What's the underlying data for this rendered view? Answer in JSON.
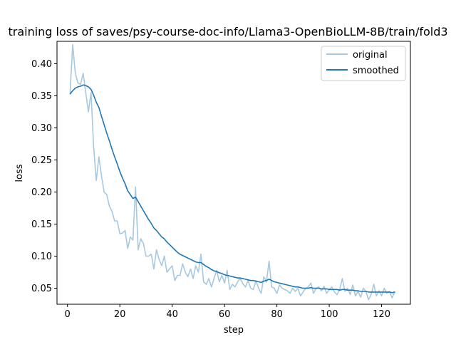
{
  "chart_data": {
    "type": "line",
    "title": "training loss of saves/psy-course-doc-info/Llama3-OpenBioLLM-8B/train/fold3",
    "xlabel": "step",
    "ylabel": "loss",
    "xlim": [
      -4,
      131
    ],
    "ylim": [
      0.025,
      0.435
    ],
    "xticks": [
      0,
      20,
      40,
      60,
      80,
      100,
      120
    ],
    "yticks": [
      0.05,
      0.1,
      0.15,
      0.2,
      0.25,
      0.3,
      0.35,
      0.4
    ],
    "legend_position": "top-right",
    "series": [
      {
        "name": "original",
        "color": "#a6c8e0",
        "x": [
          1,
          2,
          3,
          4,
          5,
          6,
          7,
          8,
          9,
          10,
          11,
          12,
          13,
          14,
          15,
          16,
          17,
          18,
          19,
          20,
          21,
          22,
          23,
          24,
          25,
          26,
          27,
          28,
          29,
          30,
          31,
          32,
          33,
          34,
          35,
          36,
          37,
          38,
          39,
          40,
          41,
          42,
          43,
          44,
          45,
          46,
          47,
          48,
          49,
          50,
          51,
          52,
          53,
          54,
          55,
          56,
          57,
          58,
          59,
          60,
          61,
          62,
          63,
          64,
          65,
          66,
          67,
          68,
          69,
          70,
          71,
          72,
          73,
          74,
          75,
          76,
          77,
          78,
          79,
          80,
          81,
          82,
          83,
          84,
          85,
          86,
          87,
          88,
          89,
          90,
          91,
          92,
          93,
          94,
          95,
          96,
          97,
          98,
          99,
          100,
          101,
          102,
          103,
          104,
          105,
          106,
          107,
          108,
          109,
          110,
          111,
          112,
          113,
          114,
          115,
          116,
          117,
          118,
          119,
          120,
          121,
          122,
          123,
          124,
          125
        ],
        "y": [
          0.355,
          0.43,
          0.385,
          0.37,
          0.368,
          0.385,
          0.355,
          0.325,
          0.355,
          0.27,
          0.218,
          0.255,
          0.225,
          0.2,
          0.196,
          0.178,
          0.17,
          0.155,
          0.155,
          0.135,
          0.136,
          0.14,
          0.112,
          0.13,
          0.125,
          0.208,
          0.11,
          0.127,
          0.12,
          0.1,
          0.1,
          0.103,
          0.08,
          0.11,
          0.095,
          0.085,
          0.1,
          0.075,
          0.08,
          0.085,
          0.062,
          0.07,
          0.07,
          0.088,
          0.075,
          0.068,
          0.08,
          0.065,
          0.085,
          0.075,
          0.103,
          0.06,
          0.056,
          0.065,
          0.052,
          0.065,
          0.078,
          0.06,
          0.07,
          0.058,
          0.078,
          0.048,
          0.056,
          0.052,
          0.06,
          0.065,
          0.057,
          0.052,
          0.062,
          0.05,
          0.048,
          0.062,
          0.05,
          0.042,
          0.068,
          0.06,
          0.092,
          0.052,
          0.05,
          0.042,
          0.055,
          0.05,
          0.048,
          0.046,
          0.042,
          0.05,
          0.045,
          0.05,
          0.038,
          0.044,
          0.05,
          0.052,
          0.058,
          0.042,
          0.05,
          0.052,
          0.046,
          0.053,
          0.042,
          0.048,
          0.052,
          0.044,
          0.04,
          0.048,
          0.065,
          0.045,
          0.05,
          0.04,
          0.055,
          0.038,
          0.045,
          0.036,
          0.05,
          0.045,
          0.032,
          0.04,
          0.056,
          0.038,
          0.046,
          0.038,
          0.05,
          0.042,
          0.045,
          0.035,
          0.044
        ]
      },
      {
        "name": "smoothed",
        "color": "#1f77b4",
        "x": [
          1,
          2,
          3,
          4,
          5,
          6,
          7,
          8,
          9,
          10,
          11,
          12,
          13,
          14,
          15,
          16,
          17,
          18,
          19,
          20,
          21,
          22,
          23,
          24,
          25,
          26,
          27,
          28,
          29,
          30,
          31,
          32,
          33,
          34,
          35,
          36,
          37,
          38,
          39,
          40,
          41,
          42,
          43,
          44,
          45,
          46,
          47,
          48,
          49,
          50,
          51,
          52,
          53,
          54,
          55,
          56,
          57,
          58,
          59,
          60,
          61,
          62,
          63,
          64,
          65,
          66,
          67,
          68,
          69,
          70,
          71,
          72,
          73,
          74,
          75,
          76,
          77,
          78,
          79,
          80,
          81,
          82,
          83,
          84,
          85,
          86,
          87,
          88,
          89,
          90,
          91,
          92,
          93,
          94,
          95,
          96,
          97,
          98,
          99,
          100,
          101,
          102,
          103,
          104,
          105,
          106,
          107,
          108,
          109,
          110,
          111,
          112,
          113,
          114,
          115,
          116,
          117,
          118,
          119,
          120,
          121,
          122,
          123,
          124,
          125
        ],
        "y": [
          0.353,
          0.358,
          0.362,
          0.364,
          0.365,
          0.367,
          0.366,
          0.364,
          0.36,
          0.351,
          0.34,
          0.332,
          0.318,
          0.305,
          0.292,
          0.28,
          0.267,
          0.255,
          0.244,
          0.232,
          0.222,
          0.213,
          0.202,
          0.196,
          0.19,
          0.192,
          0.185,
          0.178,
          0.171,
          0.164,
          0.157,
          0.151,
          0.144,
          0.14,
          0.135,
          0.13,
          0.127,
          0.122,
          0.118,
          0.114,
          0.11,
          0.106,
          0.103,
          0.101,
          0.099,
          0.097,
          0.095,
          0.093,
          0.091,
          0.09,
          0.09,
          0.087,
          0.084,
          0.082,
          0.079,
          0.077,
          0.076,
          0.074,
          0.073,
          0.071,
          0.07,
          0.069,
          0.068,
          0.067,
          0.066,
          0.066,
          0.065,
          0.064,
          0.063,
          0.062,
          0.062,
          0.061,
          0.06,
          0.059,
          0.061,
          0.062,
          0.064,
          0.062,
          0.06,
          0.059,
          0.058,
          0.057,
          0.056,
          0.055,
          0.054,
          0.053,
          0.052,
          0.052,
          0.051,
          0.05,
          0.05,
          0.05,
          0.051,
          0.05,
          0.05,
          0.05,
          0.049,
          0.049,
          0.049,
          0.048,
          0.048,
          0.048,
          0.048,
          0.047,
          0.048,
          0.048,
          0.047,
          0.047,
          0.047,
          0.046,
          0.046,
          0.045,
          0.045,
          0.045,
          0.044,
          0.044,
          0.044,
          0.044,
          0.044,
          0.044,
          0.044,
          0.044,
          0.044,
          0.043,
          0.044
        ]
      }
    ]
  }
}
